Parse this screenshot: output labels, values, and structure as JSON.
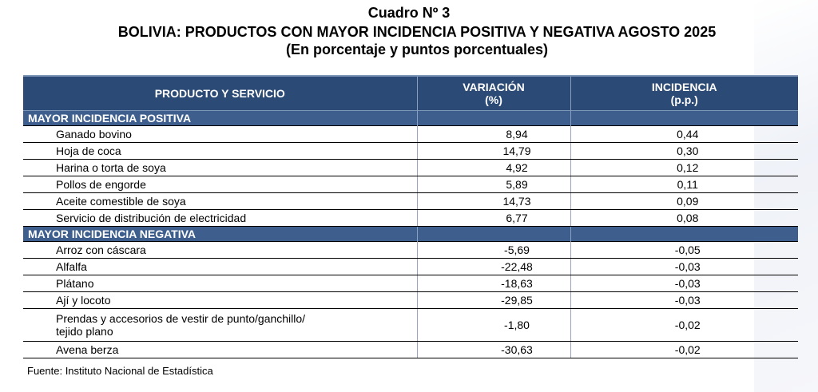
{
  "title": "Cuadro Nº 3",
  "subtitle": "BOLIVIA: PRODUCTOS CON MAYOR INCIDENCIA POSITIVA Y NEGATIVA AGOSTO 2025",
  "units": "(En porcentaje y puntos porcentuales)",
  "headers": {
    "product": "PRODUCTO Y SERVICIO",
    "variation_line1": "VARIACIÓN",
    "variation_line2": "(%)",
    "incidence_line1": "INCIDENCIA",
    "incidence_line2": "(p.p.)"
  },
  "sections": [
    {
      "label": "MAYOR INCIDENCIA POSITIVA",
      "rows": [
        {
          "product": "Ganado bovino",
          "variation": "8,94",
          "incidence": "0,44"
        },
        {
          "product": "Hoja de coca",
          "variation": "14,79",
          "incidence": "0,30"
        },
        {
          "product": "Harina o torta de soya",
          "variation": "4,92",
          "incidence": "0,12"
        },
        {
          "product": "Pollos de engorde",
          "variation": "5,89",
          "incidence": "0,11"
        },
        {
          "product": "Aceite comestible de soya",
          "variation": "14,73",
          "incidence": "0,09"
        },
        {
          "product": "Servicio de distribución de electricidad",
          "variation": "6,77",
          "incidence": "0,08"
        }
      ]
    },
    {
      "label": "MAYOR INCIDENCIA NEGATIVA",
      "rows": [
        {
          "product": "Arroz con cáscara",
          "variation": "-5,69",
          "incidence": "-0,05"
        },
        {
          "product": "Alfalfa",
          "variation": "-22,48",
          "incidence": "-0,03"
        },
        {
          "product": "Plátano",
          "variation": "-18,63",
          "incidence": "-0,03"
        },
        {
          "product": "Ají y locoto",
          "variation": "-29,85",
          "incidence": "-0,03"
        },
        {
          "product": "Prendas y accesorios de vestir de punto/ganchillo/ tejido plano",
          "variation": "-1,80",
          "incidence": "-0,02"
        },
        {
          "product": "Avena berza",
          "variation": "-30,63",
          "incidence": "-0,02"
        }
      ]
    }
  ],
  "source": "Fuente: Instituto Nacional de Estadística"
}
